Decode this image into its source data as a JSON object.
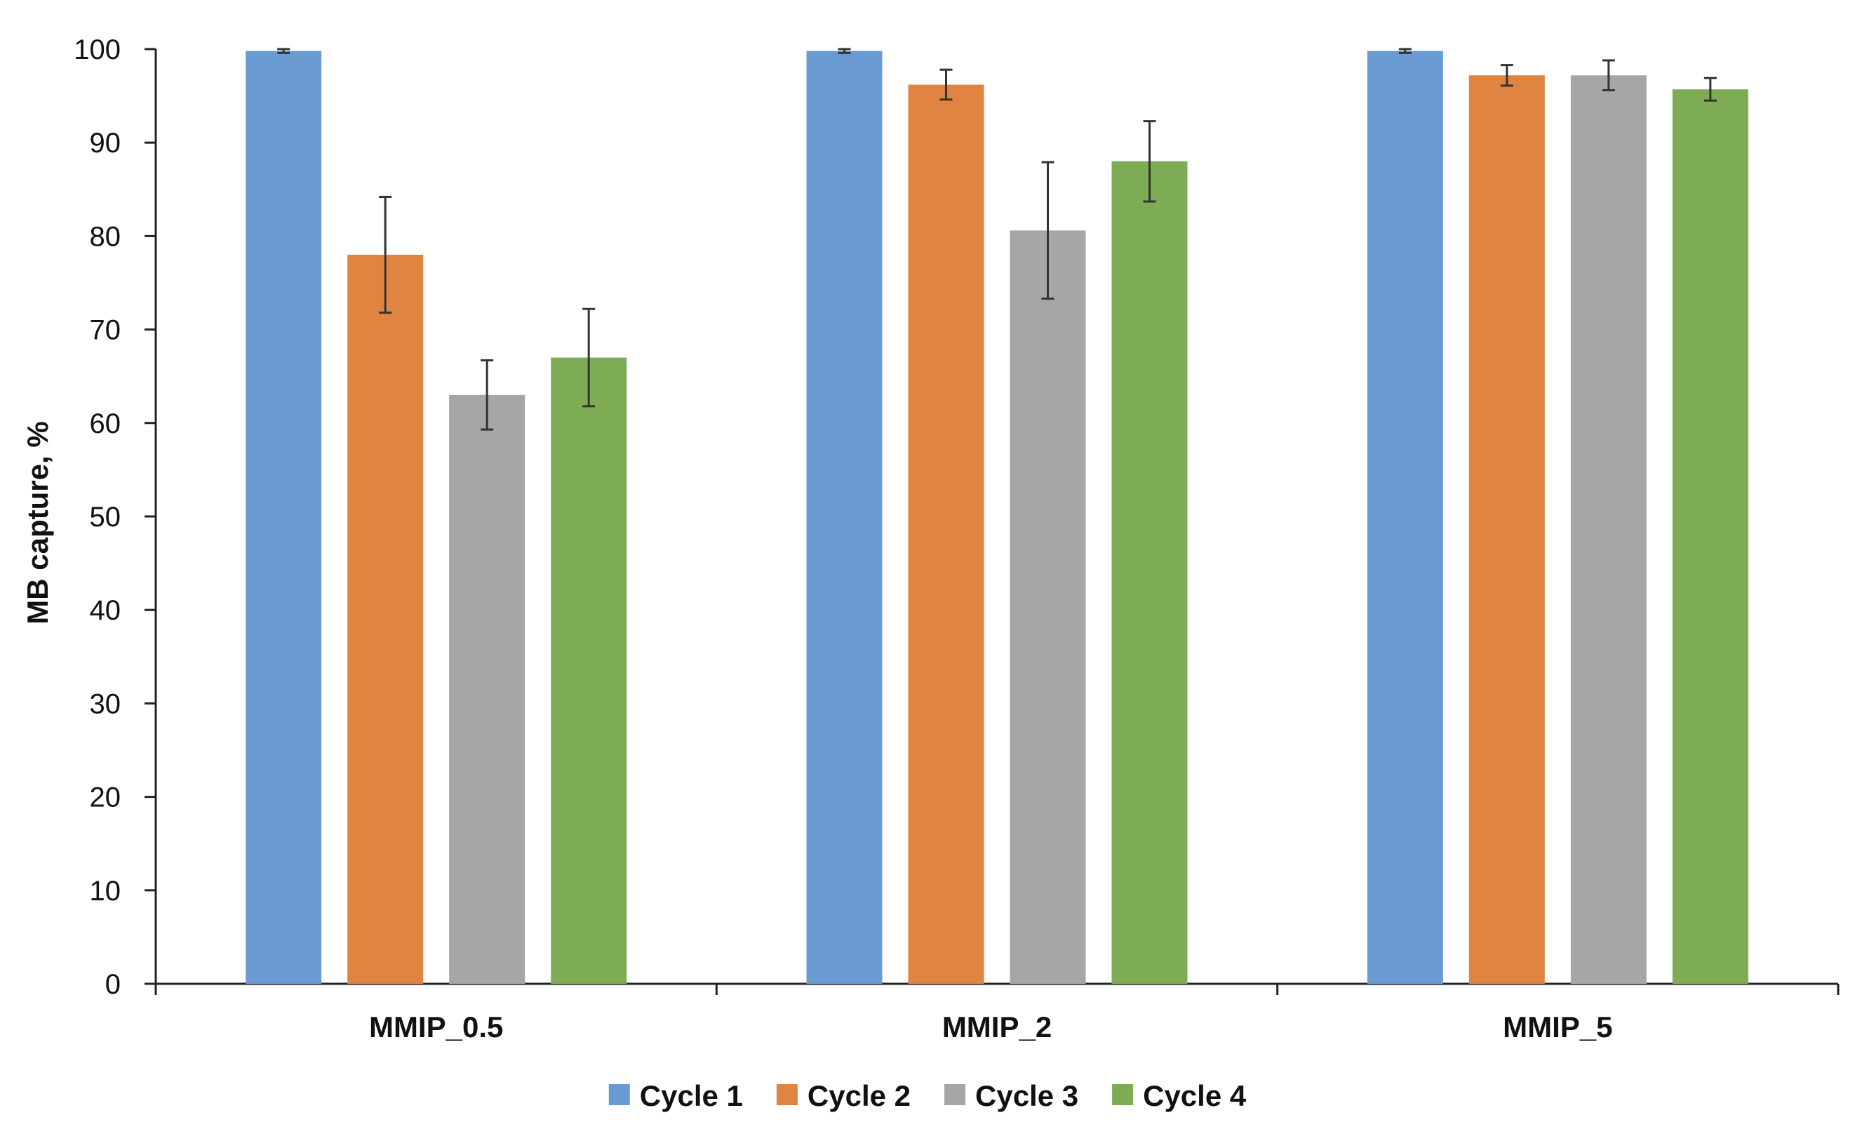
{
  "chart_data": {
    "type": "bar",
    "categories": [
      "MMIP_0.5",
      "MMIP_2",
      "MMIP_5"
    ],
    "series": [
      {
        "name": "Cycle 1",
        "color": "#6a9bd3",
        "values": [
          99.8,
          99.8,
          99.8
        ],
        "errors": [
          0.2,
          0.2,
          0.2
        ]
      },
      {
        "name": "Cycle 2",
        "color": "#e08441",
        "values": [
          78.0,
          96.2,
          97.2
        ],
        "errors": [
          6.2,
          1.6,
          1.1
        ]
      },
      {
        "name": "Cycle 3",
        "color": "#a6a6a6",
        "values": [
          63.0,
          80.6,
          97.2
        ],
        "errors": [
          3.7,
          7.3,
          1.6
        ]
      },
      {
        "name": "Cycle 4",
        "color": "#7eac55",
        "values": [
          67.0,
          88.0,
          95.7
        ],
        "errors": [
          5.2,
          4.3,
          1.2
        ]
      }
    ],
    "title": "",
    "xlabel": "",
    "ylabel": "MB capture, %",
    "ylim": [
      0,
      100
    ],
    "yticks": [
      0,
      10,
      20,
      30,
      40,
      50,
      60,
      70,
      80,
      90,
      100
    ],
    "ytick_labels": [
      "0",
      "10",
      "20",
      "30",
      "40",
      "50",
      "60",
      "70",
      "80",
      "90",
      "100"
    ],
    "grid": false,
    "error_bars": true,
    "legend_position": "bottom"
  }
}
